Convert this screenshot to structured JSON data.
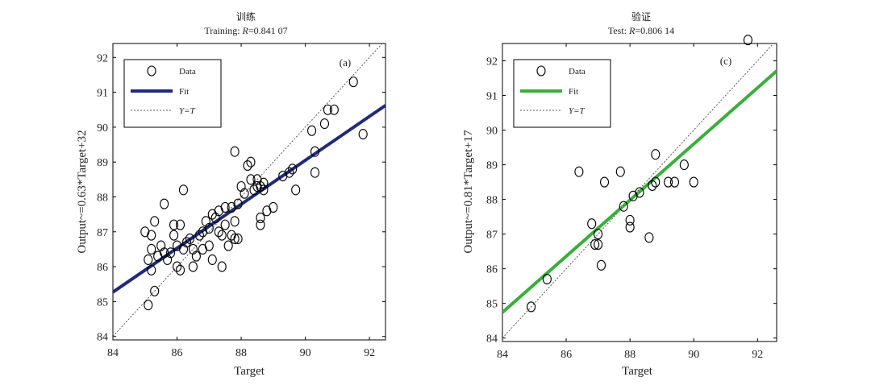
{
  "chart_data": [
    {
      "type": "scatter",
      "title": "训练",
      "subtitle_prefix": "Training: ",
      "subtitle_r": "R",
      "subtitle_value": "=0.841 07",
      "panel_label": "(a)",
      "xlabel": "Target",
      "ylabel": "Output~=0.63*Target+32",
      "xlim": [
        84,
        92.5
      ],
      "ylim": [
        83.9,
        92.4
      ],
      "xticks": [
        "84",
        "86",
        "88",
        "90",
        "92"
      ],
      "yticks": [
        "84",
        "85",
        "86",
        "87",
        "88",
        "89",
        "90",
        "91",
        "92"
      ],
      "legend": {
        "placement": "top-left",
        "entries": [
          "Data",
          "Fit",
          "Y=T"
        ]
      },
      "fit": {
        "slope": 0.63,
        "intercept": 32.35,
        "color": "#1f2a7a"
      },
      "diag_color": "#555555",
      "points": [
        [
          85.0,
          87.0
        ],
        [
          85.1,
          86.2
        ],
        [
          85.2,
          86.5
        ],
        [
          85.2,
          86.9
        ],
        [
          85.3,
          87.3
        ],
        [
          85.2,
          85.9
        ],
        [
          85.3,
          85.3
        ],
        [
          85.1,
          84.9
        ],
        [
          85.4,
          86.3
        ],
        [
          85.5,
          86.6
        ],
        [
          85.6,
          86.4
        ],
        [
          85.6,
          87.8
        ],
        [
          85.7,
          86.2
        ],
        [
          85.8,
          86.4
        ],
        [
          85.9,
          87.2
        ],
        [
          85.9,
          86.9
        ],
        [
          86.0,
          86.6
        ],
        [
          86.0,
          86.0
        ],
        [
          86.1,
          85.9
        ],
        [
          86.1,
          87.2
        ],
        [
          86.2,
          88.2
        ],
        [
          86.2,
          86.5
        ],
        [
          86.3,
          86.7
        ],
        [
          86.4,
          86.8
        ],
        [
          86.5,
          86.5
        ],
        [
          86.5,
          86.0
        ],
        [
          86.6,
          86.3
        ],
        [
          86.7,
          86.9
        ],
        [
          86.8,
          86.5
        ],
        [
          86.8,
          87.0
        ],
        [
          86.9,
          87.3
        ],
        [
          87.0,
          87.1
        ],
        [
          87.0,
          86.6
        ],
        [
          87.1,
          86.2
        ],
        [
          87.1,
          87.5
        ],
        [
          87.2,
          87.4
        ],
        [
          87.3,
          87.6
        ],
        [
          87.3,
          87.0
        ],
        [
          87.4,
          86.9
        ],
        [
          87.4,
          86.0
        ],
        [
          87.5,
          87.7
        ],
        [
          87.5,
          87.2
        ],
        [
          87.6,
          86.6
        ],
        [
          87.7,
          86.9
        ],
        [
          87.7,
          87.7
        ],
        [
          87.8,
          86.8
        ],
        [
          87.8,
          87.3
        ],
        [
          87.9,
          86.8
        ],
        [
          87.9,
          87.8
        ],
        [
          88.0,
          88.3
        ],
        [
          87.8,
          89.3
        ],
        [
          88.1,
          88.1
        ],
        [
          88.2,
          88.9
        ],
        [
          88.3,
          89.0
        ],
        [
          88.3,
          88.5
        ],
        [
          88.4,
          88.2
        ],
        [
          88.5,
          88.5
        ],
        [
          88.6,
          88.3
        ],
        [
          88.6,
          87.4
        ],
        [
          88.7,
          88.4
        ],
        [
          88.6,
          87.2
        ],
        [
          88.8,
          87.6
        ],
        [
          88.7,
          88.2
        ],
        [
          88.5,
          88.3
        ],
        [
          89.0,
          87.7
        ],
        [
          89.3,
          88.6
        ],
        [
          89.5,
          88.7
        ],
        [
          89.6,
          88.8
        ],
        [
          89.7,
          88.2
        ],
        [
          90.2,
          89.9
        ],
        [
          90.3,
          89.3
        ],
        [
          90.3,
          88.7
        ],
        [
          90.6,
          90.1
        ],
        [
          90.7,
          90.5
        ],
        [
          90.9,
          90.5
        ],
        [
          91.5,
          91.3
        ],
        [
          91.8,
          89.8
        ]
      ]
    },
    {
      "type": "scatter",
      "title": "验证",
      "subtitle_prefix": "Test: ",
      "subtitle_r": "R",
      "subtitle_value": "=0.806 14",
      "panel_label": "(c)",
      "xlabel": "Target",
      "ylabel": "Output~=0.81*Target+17",
      "xlim": [
        84,
        92.6
      ],
      "ylim": [
        83.9,
        92.5
      ],
      "xticks": [
        "84",
        "86",
        "88",
        "90",
        "92"
      ],
      "yticks": [
        "84",
        "85",
        "86",
        "87",
        "88",
        "89",
        "90",
        "91",
        "92"
      ],
      "legend": {
        "placement": "top-left",
        "entries": [
          "Data",
          "Fit",
          "Y=T"
        ]
      },
      "fit": {
        "slope": 0.81,
        "intercept": 16.7,
        "color": "#38b038"
      },
      "diag_color": "#555555",
      "points": [
        [
          84.9,
          84.9
        ],
        [
          85.4,
          85.7
        ],
        [
          86.4,
          88.8
        ],
        [
          86.8,
          87.3
        ],
        [
          86.9,
          86.7
        ],
        [
          87.0,
          86.7
        ],
        [
          87.0,
          87.0
        ],
        [
          87.1,
          86.1
        ],
        [
          87.2,
          88.5
        ],
        [
          87.7,
          88.8
        ],
        [
          87.8,
          87.8
        ],
        [
          88.0,
          87.2
        ],
        [
          88.0,
          87.4
        ],
        [
          88.1,
          88.1
        ],
        [
          88.3,
          88.2
        ],
        [
          88.6,
          86.9
        ],
        [
          88.7,
          88.4
        ],
        [
          88.8,
          89.3
        ],
        [
          88.8,
          88.5
        ],
        [
          89.2,
          88.5
        ],
        [
          89.4,
          88.5
        ],
        [
          89.7,
          89.0
        ],
        [
          90.0,
          88.5
        ],
        [
          91.7,
          92.6
        ]
      ]
    }
  ]
}
